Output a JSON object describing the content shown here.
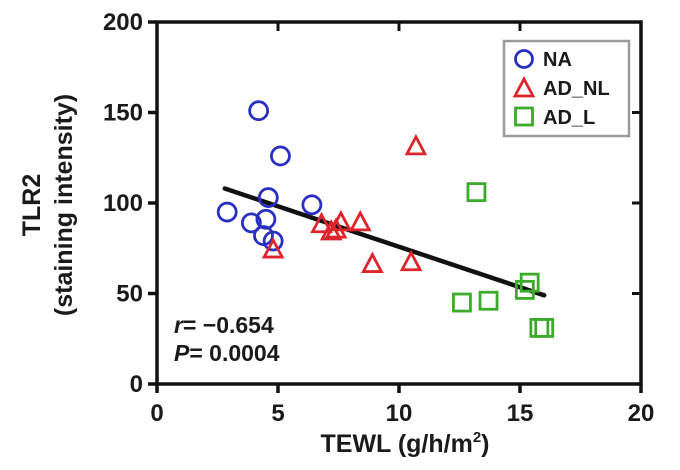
{
  "chart_data": {
    "type": "scatter",
    "xlabel": "TEWL (g/h/m",
    "xlabel_sup": "2",
    "xlabel_end": ")",
    "ylabel_line1": "TLR2",
    "ylabel_line2": "(staining intensity)",
    "xlim": [
      0,
      20
    ],
    "ylim": [
      0,
      200
    ],
    "x_ticks": [
      0,
      5,
      10,
      15,
      20
    ],
    "y_ticks": [
      0,
      50,
      100,
      150,
      200
    ],
    "x_tick_labels": [
      "0",
      "5",
      "10",
      "15",
      "20"
    ],
    "y_tick_labels": [
      "0",
      "50",
      "100",
      "150",
      "200"
    ],
    "grid": false,
    "legend_position": "top-right",
    "series": [
      {
        "name": "NA",
        "marker": "circle",
        "color": "#2a2fc4",
        "points": [
          [
            2.9,
            95
          ],
          [
            3.9,
            89
          ],
          [
            4.2,
            151
          ],
          [
            4.4,
            82
          ],
          [
            4.5,
            91
          ],
          [
            4.6,
            103
          ],
          [
            4.8,
            79
          ],
          [
            5.1,
            126
          ],
          [
            6.4,
            99
          ]
        ]
      },
      {
        "name": "AD_NL",
        "marker": "triangle",
        "color": "#e0242c",
        "points": [
          [
            4.8,
            74
          ],
          [
            6.8,
            88
          ],
          [
            7.2,
            84
          ],
          [
            7.4,
            85
          ],
          [
            7.6,
            89
          ],
          [
            8.4,
            89
          ],
          [
            8.9,
            66
          ],
          [
            10.5,
            67
          ],
          [
            10.7,
            131
          ]
        ]
      },
      {
        "name": "AD_L",
        "marker": "square",
        "color": "#3cab2b",
        "points": [
          [
            12.6,
            45
          ],
          [
            13.2,
            106
          ],
          [
            13.7,
            46
          ],
          [
            15.2,
            52
          ],
          [
            15.4,
            56
          ],
          [
            15.8,
            31
          ],
          [
            16.0,
            31
          ]
        ]
      }
    ],
    "regression_line": {
      "x": [
        2.8,
        16.0
      ],
      "y": [
        108,
        49
      ],
      "color": "#111111"
    },
    "annotations": {
      "r_symbol": "r",
      "r_value": "= −0.654",
      "p_symbol": "P",
      "p_value": "= 0.0004"
    }
  }
}
